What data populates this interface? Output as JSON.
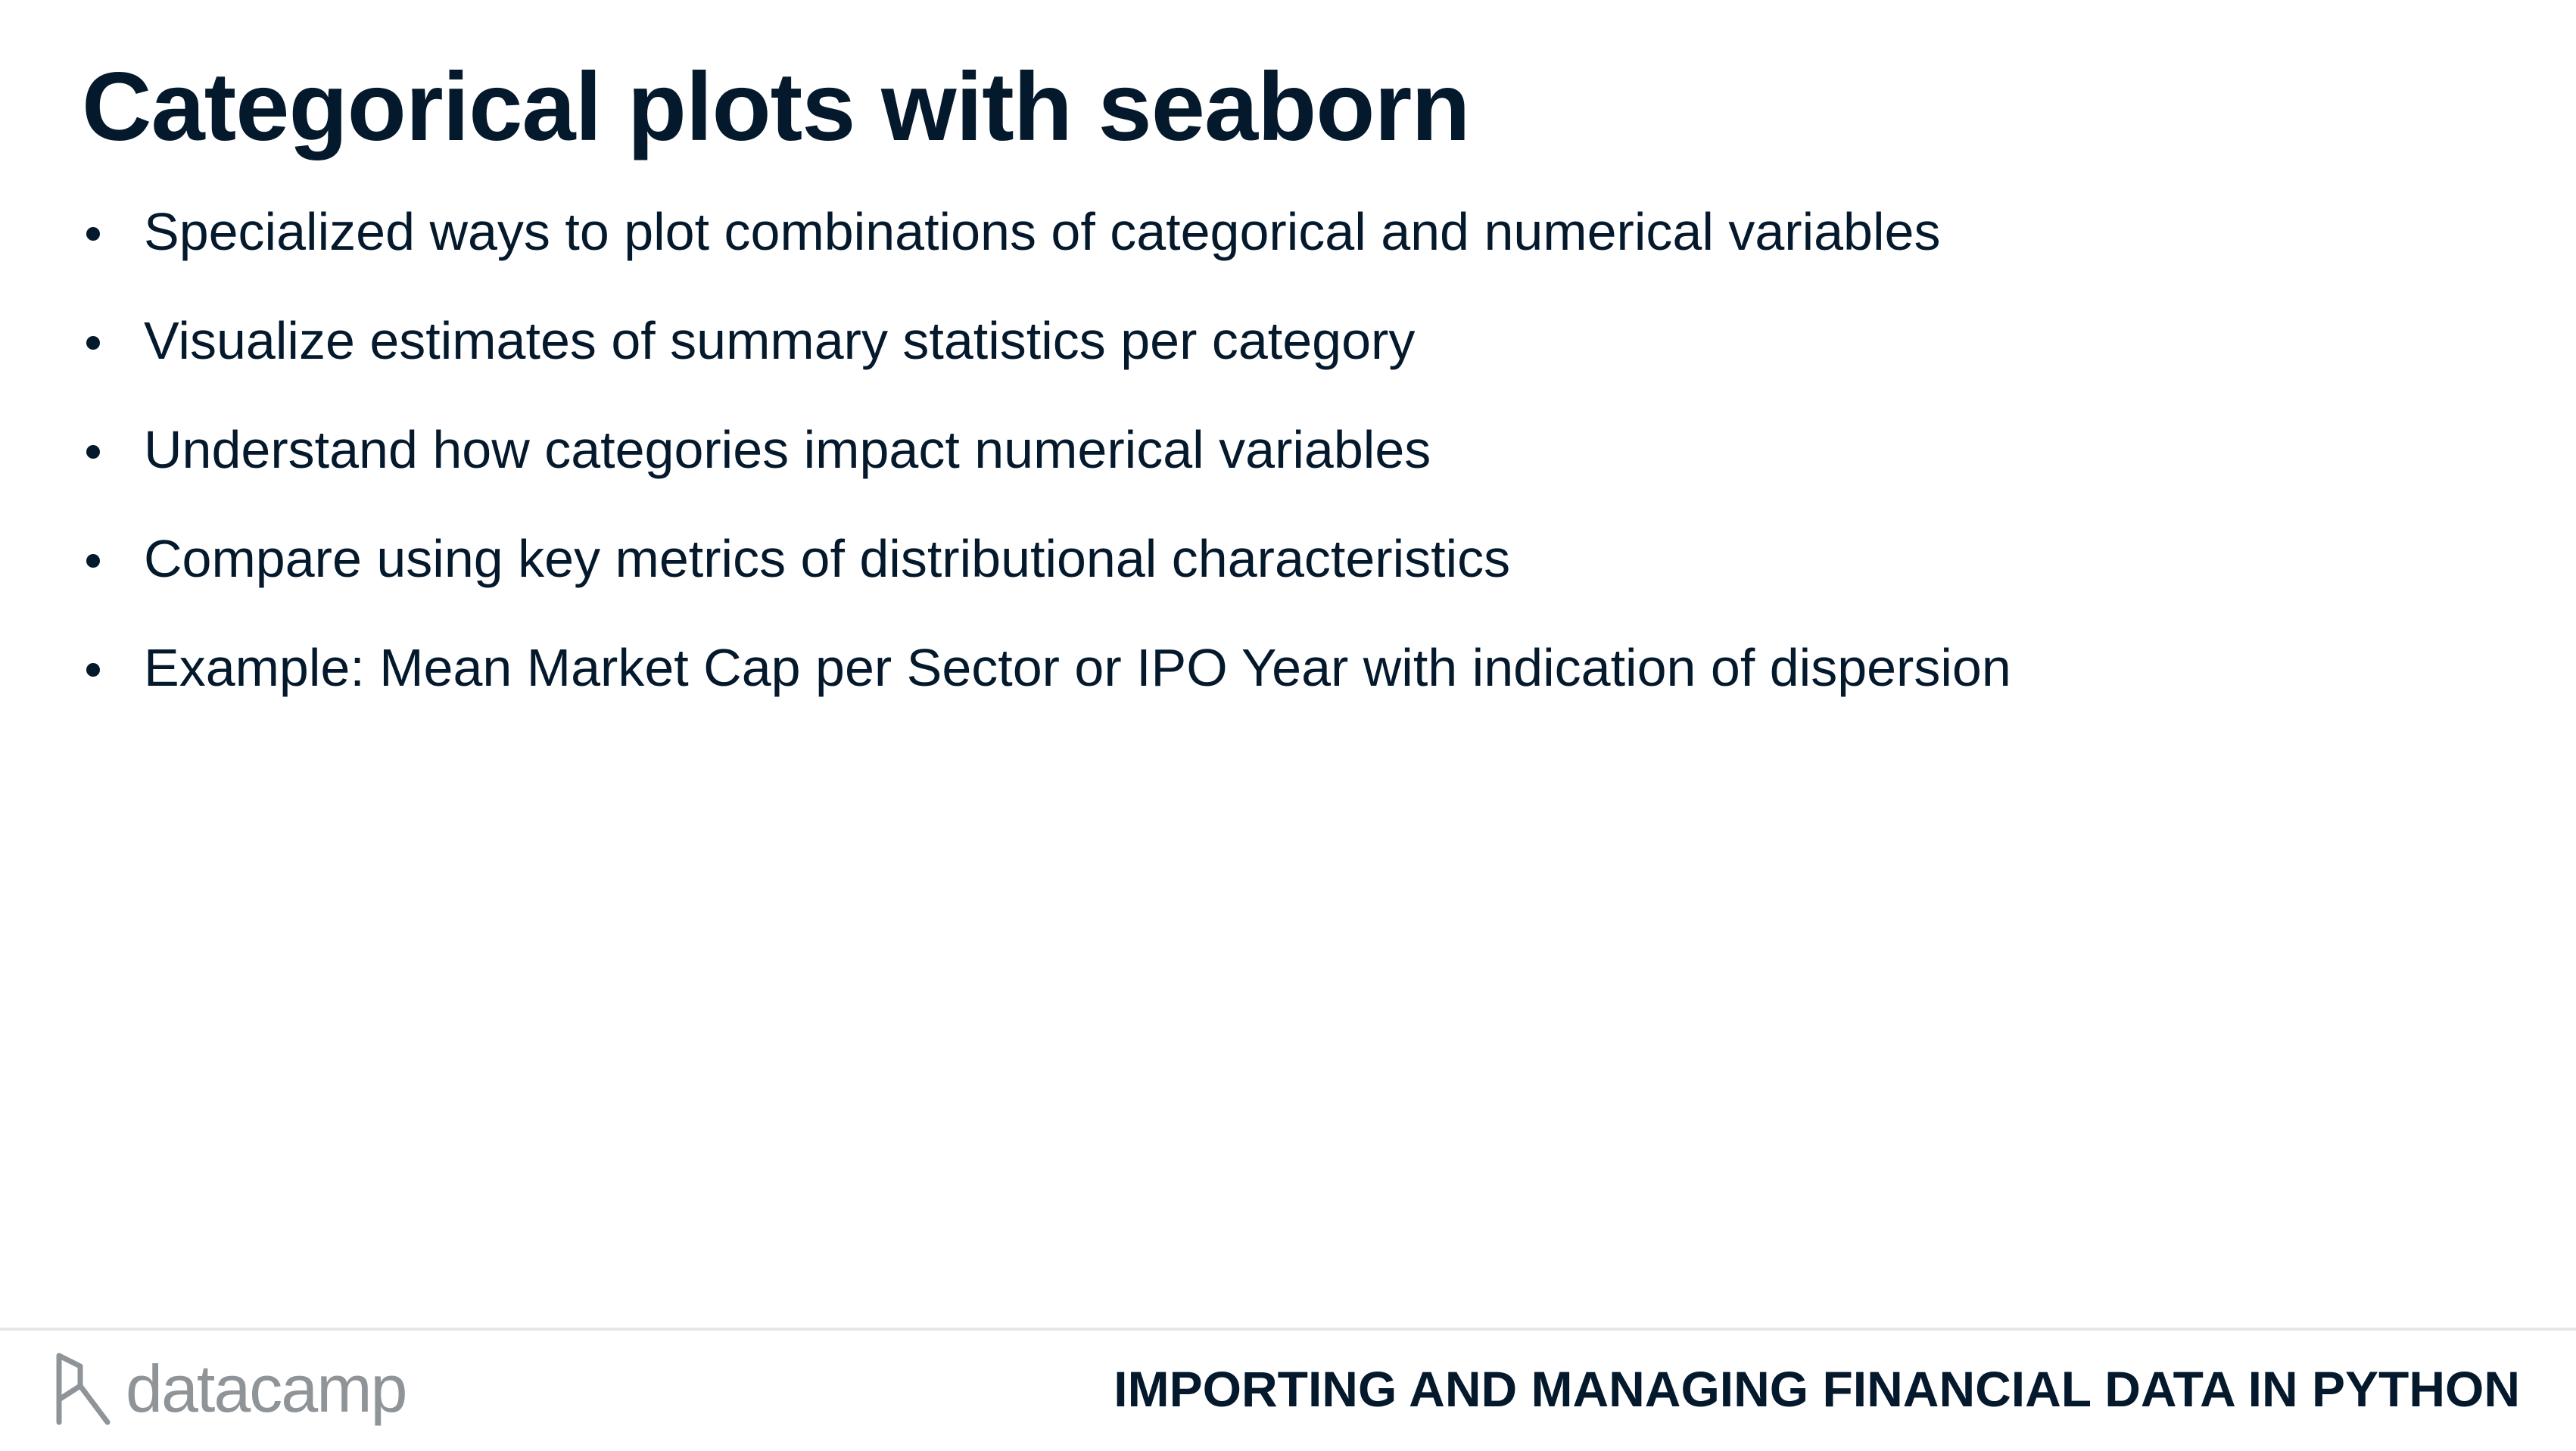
{
  "slide": {
    "title": "Categorical plots with seaborn",
    "bullets": [
      "Specialized ways to plot combinations of categorical and numerical variables",
      "Visualize estimates of summary statistics per category",
      "Understand how categories impact numerical variables",
      "Compare using key metrics of distributional characteristics",
      "Example: Mean Market Cap per Sector or IPO Year with indication of dispersion"
    ]
  },
  "footer": {
    "logo_text": "datacamp",
    "logo_icon": "datacamp-logo-icon",
    "course_title": "IMPORTING AND MANAGING FINANCIAL DATA IN PYTHON"
  },
  "colors": {
    "text": "#05192d",
    "logo_gray": "#8f9499",
    "divider": "#e6e6e6"
  }
}
